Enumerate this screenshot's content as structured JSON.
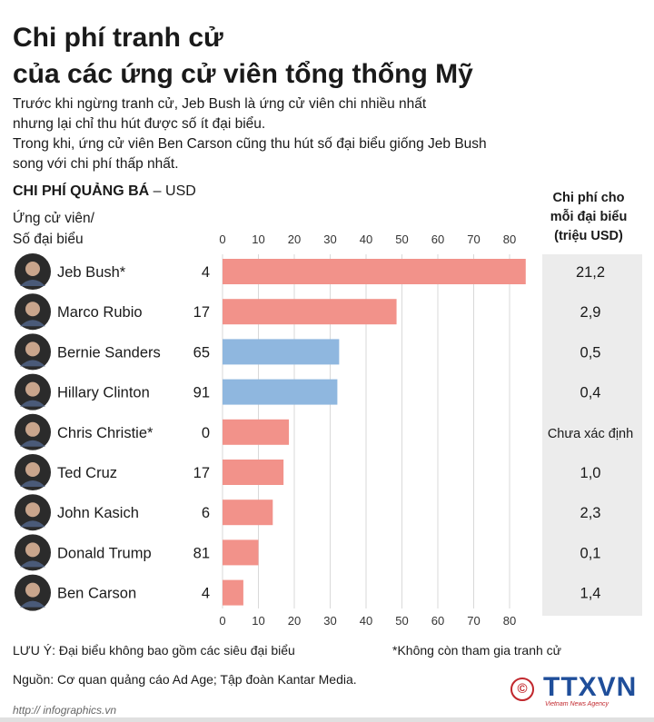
{
  "header": {
    "title_line1": "Chi phí tranh cử",
    "title_line2": "của các ứng cử viên tổng thống Mỹ",
    "desc_lines": [
      "Trước khi ngừng tranh cử, Jeb Bush là ứng cử viên chi nhiều nhất",
      "nhưng lại chỉ thu hút được số ít đại biểu.",
      "Trong khi, ứng cử viên Ben Carson cũng thu hút số đại biểu giống Jeb Bush",
      "song với chi phí thấp nhất."
    ]
  },
  "section_title_bold": "CHI PHÍ QUẢNG BÁ",
  "section_title_rest": " – USD",
  "candidate_header_line1": "Ứng cử viên/",
  "candidate_header_line2": "Số đại biểu",
  "cost_header_line1": "Chi phí cho",
  "cost_header_line2": "mỗi đại biểu",
  "cost_header_line3": "(triệu USD)",
  "chart_data": {
    "type": "bar",
    "orientation": "horizontal",
    "title": "CHI PHÍ QUẢNG BÁ – USD",
    "xlim": [
      0,
      85
    ],
    "ticks": [
      0,
      10,
      20,
      30,
      40,
      50,
      60,
      70,
      80
    ],
    "categories": [
      "Jeb Bush*",
      "Marco Rubio",
      "Bernie Sanders",
      "Hillary Clinton",
      "Chris Christie*",
      "Ted Cruz",
      "John Kasich",
      "Donald Trump",
      "Ben Carson"
    ],
    "delegates": [
      "4",
      "17",
      "65",
      "91",
      "0",
      "17",
      "6",
      "81",
      "4"
    ],
    "values": [
      84.5,
      48.5,
      32.5,
      32.0,
      18.5,
      17.0,
      14.0,
      10.0,
      5.8
    ],
    "cost_per_delegate": [
      "21,2",
      "2,9",
      "0,5",
      "0,4",
      "Chưa xác định",
      "1,0",
      "2,3",
      "0,1",
      "1,4"
    ],
    "bar_colors": [
      "#f2928a",
      "#f2928a",
      "#8fb7df",
      "#8fb7df",
      "#f2928a",
      "#f2928a",
      "#f2928a",
      "#f2928a",
      "#f2928a"
    ],
    "grid": true
  },
  "footer": {
    "note": "LƯU Ý: Đại biểu không bao gồm các siêu đại biểu",
    "note_right": "*Không còn tham gia tranh cử",
    "source": "Nguồn: Cơ quan quảng cáo Ad Age; Tập đoàn Kantar Media.",
    "url": "http:// infographics.vn",
    "logo_text": "TTXVN",
    "logo_sub": "Vietnam News Agency",
    "copyright_symbol": "©"
  }
}
